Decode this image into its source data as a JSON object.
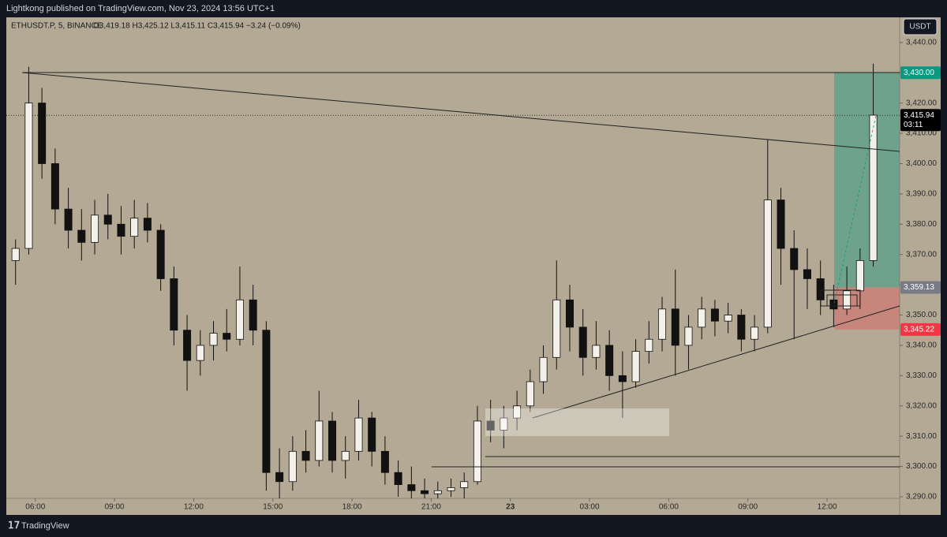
{
  "header": {
    "text": "Lightkong published on TradingView.com, Nov 23, 2024 13:56 UTC+1"
  },
  "footer": {
    "brand": "TradingView"
  },
  "chart_data": {
    "type": "candlestick",
    "symbol": "ETHUSDT.P, 5, BINANCE",
    "ohlc_legend": "O3,419.18  H3,425.12  L3,415.11  C3,415.94  −3.24 (−0.09%)",
    "currency": "USDT",
    "up_color": "#f4f1ea",
    "down_color": "#111111",
    "grid": false,
    "x": [
      5.0,
      5.5,
      6.0,
      6.5,
      7.0,
      7.5,
      8.0,
      8.5,
      9.0,
      9.5,
      10.0,
      10.5,
      11.0,
      11.5,
      12.0,
      12.5,
      13.0,
      13.5,
      14.0,
      14.5,
      15.0,
      15.5,
      16.0,
      16.5,
      17.0,
      17.5,
      18.0,
      18.5,
      19.0,
      19.5,
      20.0,
      20.5,
      21.0,
      21.5,
      22.0,
      22.5,
      23.0,
      23.5,
      24.0,
      24.5,
      25.0,
      25.5,
      26.0,
      26.5,
      27.0,
      27.5,
      28.0,
      28.5,
      29.0,
      29.5,
      30.0,
      30.5,
      31.0,
      31.5,
      32.0,
      32.5,
      33.0,
      33.5,
      34.0,
      34.5,
      35.0,
      35.5,
      36.0,
      36.5,
      37.0,
      37.5
    ],
    "open": [
      3368,
      3372,
      3420,
      3400,
      3385,
      3378,
      3374,
      3383,
      3380,
      3376,
      3382,
      3378,
      3362,
      3345,
      3335,
      3340,
      3344,
      3342,
      3355,
      3345,
      3298,
      3295,
      3305,
      3302,
      3315,
      3302,
      3305,
      3316,
      3305,
      3298,
      3294,
      3292,
      3291,
      3292,
      3293,
      3295,
      3315,
      3312,
      3316,
      3320,
      3328,
      3336,
      3355,
      3346,
      3336,
      3340,
      3330,
      3328,
      3338,
      3342,
      3352,
      3340,
      3346,
      3352,
      3348,
      3350,
      3342,
      3346,
      3388,
      3372,
      3365,
      3362,
      3355,
      3352,
      3358,
      3368
    ],
    "high": [
      3375,
      3432,
      3425,
      3405,
      3392,
      3385,
      3388,
      3390,
      3386,
      3388,
      3387,
      3380,
      3366,
      3350,
      3345,
      3348,
      3352,
      3366,
      3360,
      3348,
      3306,
      3310,
      3312,
      3325,
      3318,
      3310,
      3322,
      3318,
      3310,
      3302,
      3300,
      3296,
      3295,
      3296,
      3298,
      3320,
      3322,
      3320,
      3325,
      3332,
      3340,
      3368,
      3360,
      3352,
      3348,
      3345,
      3338,
      3342,
      3348,
      3356,
      3365,
      3350,
      3356,
      3355,
      3354,
      3352,
      3350,
      3408,
      3392,
      3378,
      3372,
      3368,
      3360,
      3366,
      3372,
      3433
    ],
    "low": [
      3360,
      3370,
      3395,
      3380,
      3372,
      3368,
      3370,
      3375,
      3370,
      3372,
      3374,
      3358,
      3340,
      3325,
      3330,
      3335,
      3338,
      3340,
      3340,
      3292,
      3289,
      3292,
      3298,
      3300,
      3298,
      3296,
      3302,
      3300,
      3294,
      3290,
      3289,
      3289,
      3289,
      3290,
      3289,
      3294,
      3308,
      3306,
      3312,
      3318,
      3324,
      3332,
      3338,
      3330,
      3332,
      3325,
      3316,
      3326,
      3334,
      3338,
      3330,
      3332,
      3342,
      3343,
      3344,
      3338,
      3338,
      3344,
      3360,
      3342,
      3352,
      3350,
      3346,
      3350,
      3352,
      3366
    ],
    "close": [
      3372,
      3420,
      3400,
      3385,
      3378,
      3374,
      3383,
      3380,
      3376,
      3382,
      3378,
      3362,
      3345,
      3335,
      3340,
      3344,
      3342,
      3355,
      3345,
      3298,
      3295,
      3305,
      3302,
      3315,
      3302,
      3305,
      3316,
      3305,
      3298,
      3294,
      3292,
      3291,
      3292,
      3293,
      3295,
      3315,
      3312,
      3316,
      3320,
      3328,
      3336,
      3355,
      3346,
      3336,
      3340,
      3330,
      3328,
      3338,
      3342,
      3352,
      3340,
      3346,
      3352,
      3348,
      3350,
      3342,
      3346,
      3388,
      3372,
      3365,
      3362,
      3355,
      3352,
      3358,
      3368,
      3416
    ],
    "xlim": [
      4.9,
      38.75
    ],
    "ylim": [
      3284,
      3448.3
    ],
    "xticks": [
      {
        "value": 6,
        "label": "06:00"
      },
      {
        "value": 9,
        "label": "09:00"
      },
      {
        "value": 12,
        "label": "12:00"
      },
      {
        "value": 15,
        "label": "15:00"
      },
      {
        "value": 18,
        "label": "18:00"
      },
      {
        "value": 21,
        "label": "21:00"
      },
      {
        "value": 24,
        "label": "23"
      },
      {
        "value": 27,
        "label": "03:00"
      },
      {
        "value": 30,
        "label": "06:00"
      },
      {
        "value": 33,
        "label": "09:00"
      },
      {
        "value": 36,
        "label": "12:00"
      }
    ],
    "yticks": [
      {
        "value": 3290,
        "label": "3,290.00"
      },
      {
        "value": 3300,
        "label": "3,300.00"
      },
      {
        "value": 3310,
        "label": "3,310.00"
      },
      {
        "value": 3320,
        "label": "3,320.00"
      },
      {
        "value": 3330,
        "label": "3,330.00"
      },
      {
        "value": 3340,
        "label": "3,340.00"
      },
      {
        "value": 3350,
        "label": "3,350.00"
      },
      {
        "value": 3360,
        "label": "3,360.00"
      },
      {
        "value": 3370,
        "label": "3,370.00"
      },
      {
        "value": 3380,
        "label": "3,380.00"
      },
      {
        "value": 3390,
        "label": "3,390.00"
      },
      {
        "value": 3400,
        "label": "3,400.00"
      },
      {
        "value": 3410,
        "label": "3,410.00"
      },
      {
        "value": 3420,
        "label": "3,420.00"
      },
      {
        "value": 3430,
        "label": "3,430.00"
      },
      {
        "value": 3440,
        "label": "3,440.00"
      }
    ],
    "price_labels": [
      {
        "value": 3430.0,
        "label": "3,430.00",
        "color": "#089981"
      },
      {
        "value": 3359.13,
        "label": "3,359.13",
        "color": "#787b86"
      },
      {
        "value": 3345.22,
        "label": "3,345.22",
        "color": "#f23645"
      },
      {
        "value": 3415.94,
        "label": "3,415.94",
        "color": "#000000"
      }
    ],
    "countdown": "03:11"
  }
}
